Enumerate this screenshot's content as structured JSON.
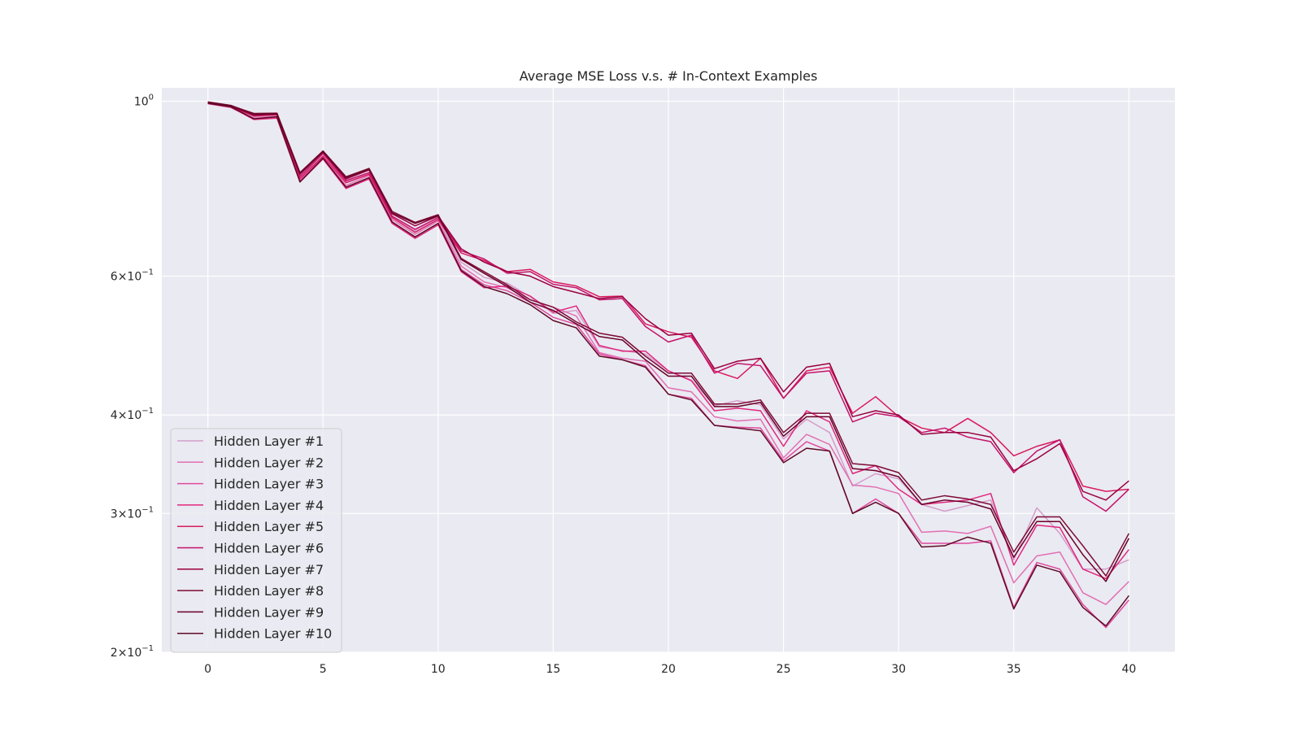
{
  "chart_data": {
    "type": "line",
    "title": "Average MSE Loss v.s. # In-Context Examples",
    "xlabel": "",
    "ylabel": "",
    "y_scale": "log",
    "xlim": [
      -2,
      42
    ],
    "ylim": [
      0.2,
      1.04
    ],
    "grid": true,
    "background": "#eaeaf2",
    "legend_position": "lower-left",
    "x_ticks": [
      {
        "value": 0,
        "label": "0"
      },
      {
        "value": 5,
        "label": "5"
      },
      {
        "value": 10,
        "label": "10"
      },
      {
        "value": 15,
        "label": "15"
      },
      {
        "value": 20,
        "label": "20"
      },
      {
        "value": 25,
        "label": "25"
      },
      {
        "value": 30,
        "label": "30"
      },
      {
        "value": 35,
        "label": "35"
      },
      {
        "value": 40,
        "label": "40"
      }
    ],
    "y_ticks": [
      {
        "value": 1.0,
        "base": "10",
        "exp": "0"
      },
      {
        "value": 0.6,
        "mant": "6",
        "base": "10",
        "exp": "−1"
      },
      {
        "value": 0.4,
        "mant": "4",
        "base": "10",
        "exp": "−1"
      },
      {
        "value": 0.3,
        "mant": "3",
        "base": "10",
        "exp": "−1"
      },
      {
        "value": 0.2,
        "mant": "2",
        "base": "10",
        "exp": "−1"
      }
    ],
    "x": [
      0,
      1,
      2,
      3,
      4,
      5,
      6,
      7,
      8,
      9,
      10,
      11,
      12,
      13,
      14,
      15,
      16,
      17,
      18,
      19,
      20,
      21,
      22,
      23,
      24,
      25,
      26,
      27,
      28,
      29,
      30,
      31,
      32,
      33,
      34,
      35,
      36,
      37,
      38,
      39,
      40
    ],
    "series": [
      {
        "name": "Hidden Layer #1",
        "color": "#d59cc9",
        "values": [
          0.993,
          0.985,
          0.955,
          0.96,
          0.8,
          0.86,
          0.79,
          0.81,
          0.715,
          0.685,
          0.71,
          0.625,
          0.598,
          0.588,
          0.565,
          0.538,
          0.543,
          0.488,
          0.483,
          0.478,
          0.455,
          0.443,
          0.411,
          0.417,
          0.412,
          0.373,
          0.395,
          0.38,
          0.325,
          0.337,
          0.332,
          0.308,
          0.302,
          0.307,
          0.312,
          0.262,
          0.305,
          0.283,
          0.255,
          0.255,
          0.262
        ]
      },
      {
        "name": "Hidden Layer #2",
        "color": "#e26fb3",
        "values": [
          0.993,
          0.983,
          0.952,
          0.958,
          0.795,
          0.85,
          0.782,
          0.805,
          0.708,
          0.678,
          0.705,
          0.618,
          0.59,
          0.58,
          0.56,
          0.548,
          0.534,
          0.48,
          0.472,
          0.468,
          0.433,
          0.428,
          0.398,
          0.393,
          0.395,
          0.353,
          0.378,
          0.367,
          0.326,
          0.324,
          0.318,
          0.284,
          0.285,
          0.283,
          0.289,
          0.245,
          0.265,
          0.268,
          0.238,
          0.23,
          0.246
        ]
      },
      {
        "name": "Hidden Layer #3",
        "color": "#e0499e",
        "values": [
          0.993,
          0.982,
          0.95,
          0.955,
          0.792,
          0.848,
          0.778,
          0.8,
          0.703,
          0.673,
          0.7,
          0.612,
          0.585,
          0.575,
          0.556,
          0.532,
          0.521,
          0.478,
          0.47,
          0.462,
          0.425,
          0.42,
          0.388,
          0.386,
          0.385,
          0.35,
          0.37,
          0.36,
          0.3,
          0.313,
          0.3,
          0.275,
          0.275,
          0.275,
          0.277,
          0.228,
          0.26,
          0.255,
          0.23,
          0.215,
          0.233
        ]
      },
      {
        "name": "Hidden Layer #4",
        "color": "#e0277e",
        "values": [
          0.994,
          0.983,
          0.948,
          0.952,
          0.79,
          0.845,
          0.775,
          0.797,
          0.7,
          0.67,
          0.697,
          0.608,
          0.58,
          0.583,
          0.566,
          0.54,
          0.55,
          0.49,
          0.482,
          0.482,
          0.455,
          0.442,
          0.405,
          0.408,
          0.405,
          0.365,
          0.405,
          0.392,
          0.337,
          0.345,
          0.322,
          0.308,
          0.31,
          0.312,
          0.318,
          0.258,
          0.29,
          0.288,
          0.255,
          0.248,
          0.27
        ]
      },
      {
        "name": "Hidden Layer #5",
        "color": "#d81c5f",
        "values": [
          0.995,
          0.984,
          0.958,
          0.962,
          0.798,
          0.852,
          0.788,
          0.808,
          0.712,
          0.682,
          0.708,
          0.642,
          0.628,
          0.608,
          0.612,
          0.59,
          0.583,
          0.565,
          0.566,
          0.522,
          0.51,
          0.502,
          0.455,
          0.445,
          0.472,
          0.42,
          0.455,
          0.46,
          0.402,
          0.422,
          0.398,
          0.385,
          0.38,
          0.396,
          0.38,
          0.355,
          0.365,
          0.372,
          0.325,
          0.32,
          0.322
        ]
      },
      {
        "name": "Hidden Layer #6",
        "color": "#c4126a",
        "values": [
          0.996,
          0.985,
          0.962,
          0.965,
          0.803,
          0.858,
          0.793,
          0.812,
          0.715,
          0.688,
          0.712,
          0.646,
          0.631,
          0.605,
          0.608,
          0.586,
          0.58,
          0.56,
          0.562,
          0.518,
          0.495,
          0.505,
          0.452,
          0.465,
          0.462,
          0.42,
          0.452,
          0.455,
          0.392,
          0.402,
          0.398,
          0.38,
          0.385,
          0.375,
          0.37,
          0.338,
          0.36,
          0.372,
          0.315,
          0.302,
          0.322
        ]
      },
      {
        "name": "Hidden Layer #7",
        "color": "#99003f",
        "values": [
          0.997,
          0.986,
          0.96,
          0.963,
          0.808,
          0.862,
          0.797,
          0.818,
          0.72,
          0.695,
          0.715,
          0.65,
          0.625,
          0.608,
          0.6,
          0.582,
          0.572,
          0.562,
          0.565,
          0.53,
          0.505,
          0.508,
          0.458,
          0.468,
          0.472,
          0.428,
          0.46,
          0.465,
          0.398,
          0.405,
          0.4,
          0.378,
          0.38,
          0.38,
          0.375,
          0.34,
          0.352,
          0.368,
          0.32,
          0.312,
          0.33
        ]
      },
      {
        "name": "Hidden Layer #8",
        "color": "#7d0b35",
        "values": [
          0.998,
          0.987,
          0.965,
          0.966,
          0.812,
          0.865,
          0.802,
          0.822,
          0.725,
          0.702,
          0.718,
          0.632,
          0.608,
          0.585,
          0.56,
          0.548,
          0.525,
          0.508,
          0.502,
          0.475,
          0.452,
          0.452,
          0.413,
          0.413,
          0.418,
          0.38,
          0.402,
          0.402,
          0.347,
          0.345,
          0.338,
          0.312,
          0.316,
          0.313,
          0.308,
          0.268,
          0.297,
          0.297,
          0.273,
          0.25,
          0.283
        ]
      },
      {
        "name": "Hidden Layer #9",
        "color": "#6a0028",
        "values": [
          0.998,
          0.988,
          0.963,
          0.964,
          0.81,
          0.863,
          0.8,
          0.82,
          0.722,
          0.7,
          0.716,
          0.63,
          0.605,
          0.582,
          0.556,
          0.543,
          0.522,
          0.503,
          0.498,
          0.47,
          0.448,
          0.448,
          0.41,
          0.41,
          0.415,
          0.376,
          0.398,
          0.398,
          0.342,
          0.34,
          0.334,
          0.308,
          0.312,
          0.31,
          0.304,
          0.264,
          0.293,
          0.293,
          0.266,
          0.246,
          0.279
        ]
      },
      {
        "name": "Hidden Layer #10",
        "color": "#5e0a24",
        "values": [
          0.994,
          0.984,
          0.95,
          0.956,
          0.79,
          0.847,
          0.778,
          0.8,
          0.703,
          0.673,
          0.7,
          0.61,
          0.582,
          0.57,
          0.552,
          0.527,
          0.516,
          0.475,
          0.47,
          0.46,
          0.425,
          0.418,
          0.388,
          0.385,
          0.382,
          0.348,
          0.363,
          0.36,
          0.3,
          0.31,
          0.3,
          0.272,
          0.273,
          0.28,
          0.275,
          0.227,
          0.258,
          0.253,
          0.228,
          0.216,
          0.236
        ]
      }
    ]
  }
}
